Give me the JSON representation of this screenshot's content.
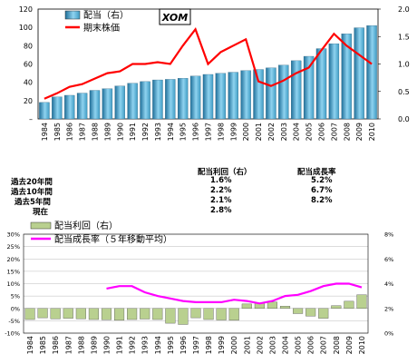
{
  "top_chart": {
    "ticker_box": "XOM",
    "legend": {
      "bars": "配当（右）",
      "line": "期末株価"
    },
    "y_left_ticks": [
      "120",
      "100",
      "80",
      "60",
      "40",
      "20",
      "–"
    ],
    "y_right_ticks": [
      "2.0",
      "1.5",
      "1.0",
      "0.5",
      "0.0"
    ]
  },
  "table": {
    "header_yield": "配当利回（右）",
    "header_growth": "配当成長率",
    "rows": [
      {
        "label": "過去20年間",
        "yield": "1.6%",
        "growth": "5.2%"
      },
      {
        "label": "過去10年間",
        "yield": "2.2%",
        "growth": "6.7%"
      },
      {
        "label": "過去5年間",
        "yield": "2.1%",
        "growth": "8.2%"
      },
      {
        "label": "現在",
        "yield": "2.8%",
        "growth": ""
      }
    ]
  },
  "bottom_chart": {
    "legend": {
      "bars": "配当利回（右）",
      "line": "配当成長率（５年移動平均）"
    },
    "y_left_ticks": [
      "30%",
      "25%",
      "20%",
      "15%",
      "10%",
      "5%",
      "0%",
      "-5%",
      "-10%"
    ],
    "y_right_ticks": [
      "8%",
      "6%",
      "4%",
      "2%",
      "0%"
    ]
  },
  "colors": {
    "bar_gradient_dark": "#1f6f99",
    "bar_gradient_light": "#8fd3f0",
    "price_line": "#ff0000",
    "yield_bar_fill": "#b9d08f",
    "growth_line": "#ff00ff"
  },
  "chart_data": [
    {
      "type": "bar",
      "title": "",
      "categories": [
        "1984",
        "1985",
        "1986",
        "1987",
        "1988",
        "1989",
        "1990",
        "1991",
        "1992",
        "1993",
        "1994",
        "1995",
        "1996",
        "1997",
        "1998",
        "1999",
        "2000",
        "2001",
        "2002",
        "2003",
        "2004",
        "2005",
        "2006",
        "2007",
        "2008",
        "2009",
        "2010"
      ],
      "series": [
        {
          "name": "配当（右）",
          "axis": "right",
          "values": [
            0.3,
            0.4,
            0.43,
            0.47,
            0.52,
            0.55,
            0.6,
            0.65,
            0.68,
            0.71,
            0.72,
            0.74,
            0.78,
            0.81,
            0.83,
            0.85,
            0.88,
            0.9,
            0.93,
            0.98,
            1.06,
            1.14,
            1.28,
            1.37,
            1.55,
            1.66,
            1.7
          ]
        },
        {
          "name": "期末株価",
          "axis": "left",
          "type": "line",
          "values": [
            22,
            28,
            35,
            38,
            44,
            50,
            52,
            60,
            60,
            62,
            60,
            80,
            98,
            60,
            73,
            80,
            87,
            41,
            36,
            42,
            50,
            56,
            75,
            93,
            80,
            70,
            60
          ]
        }
      ],
      "ylim_left": [
        0,
        120
      ],
      "ylim_right": [
        0,
        2.0
      ]
    },
    {
      "type": "bar",
      "title": "",
      "categories": [
        "1984",
        "1985",
        "1986",
        "1987",
        "1988",
        "1989",
        "1990",
        "1991",
        "1992",
        "1993",
        "1994",
        "1995",
        "1996",
        "1997",
        "1998",
        "1999",
        "2000",
        "2001",
        "2002",
        "2003",
        "2004",
        "2005",
        "2006",
        "2007",
        "2008",
        "2009",
        "2010"
      ],
      "series": [
        {
          "name": "配当利回（右）",
          "axis": "left",
          "values": [
            -4.5,
            -3.8,
            -4.2,
            -4.0,
            -4.2,
            -4.5,
            -4.6,
            -4.8,
            -4.5,
            -4.3,
            -4.5,
            -6.0,
            -6.5,
            -3.8,
            -4.5,
            -4.7,
            -4.8,
            1.8,
            2.2,
            2.6,
            0.9,
            -2.1,
            -3.1,
            -4.0,
            1.1,
            2.9,
            5.5
          ]
        },
        {
          "name": "配当成長率（５年移動平均）",
          "axis": "right",
          "type": "line",
          "values": [
            null,
            null,
            null,
            null,
            null,
            null,
            3.6,
            3.8,
            3.8,
            3.3,
            3.0,
            2.8,
            2.6,
            2.5,
            2.5,
            2.5,
            2.7,
            2.6,
            2.4,
            2.6,
            3.0,
            3.1,
            3.4,
            3.8,
            4.0,
            4.0,
            3.7
          ]
        }
      ],
      "ylim_left": [
        -10,
        30
      ],
      "ylim_right": [
        0,
        8
      ]
    }
  ]
}
